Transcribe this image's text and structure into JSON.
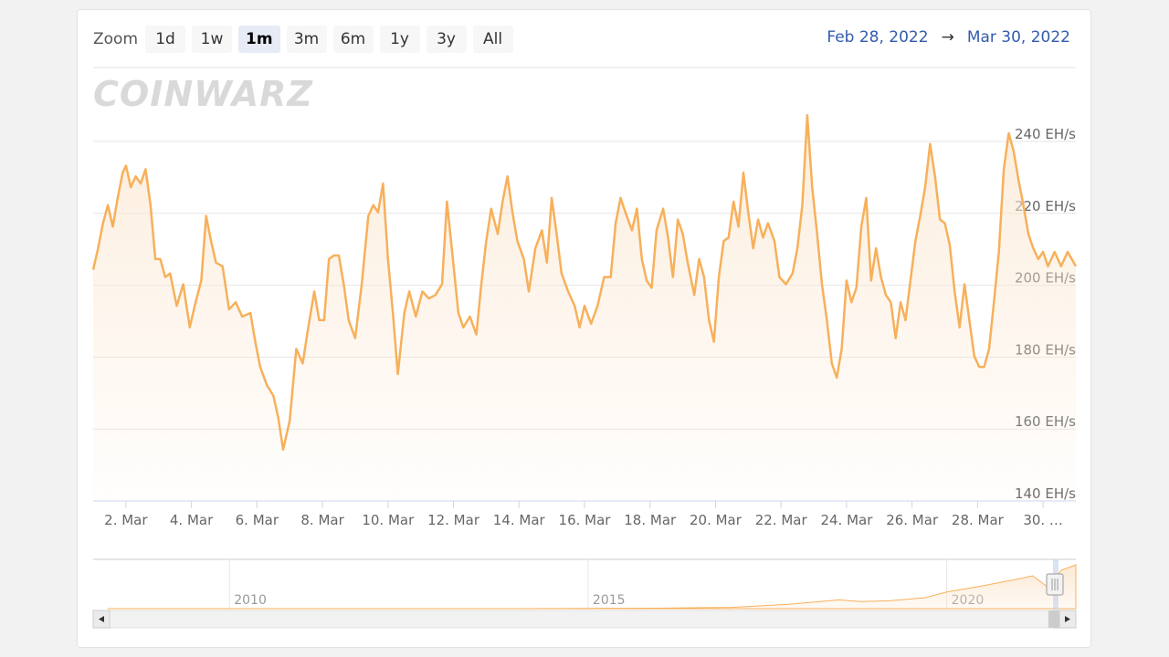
{
  "zoom": {
    "label": "Zoom",
    "buttons": [
      "1d",
      "1w",
      "1m",
      "3m",
      "6m",
      "1y",
      "3y",
      "All"
    ],
    "active": "1m"
  },
  "date_range": {
    "from": "Feb 28, 2022",
    "arrow": "→",
    "to": "Mar 30, 2022"
  },
  "watermark": "COINWARZ",
  "colors": {
    "line": "#f7b05b",
    "fill_top": "#fbe6cf",
    "grid": "#e6e6e6",
    "range_text": "#335cad"
  },
  "chart_data": {
    "type": "area",
    "y_unit": "EH/s",
    "ylim": [
      140,
      250
    ],
    "y_ticks": [
      "140 EH/s",
      "160 EH/s",
      "180 EH/s",
      "200 EH/s",
      "220 EH/s",
      "240 EH/s"
    ],
    "y_tick_values": [
      140,
      160,
      180,
      200,
      220,
      240
    ],
    "x_ticks": [
      "2. Mar",
      "4. Mar",
      "6. Mar",
      "8. Mar",
      "10. Mar",
      "12. Mar",
      "14. Mar",
      "16. Mar",
      "18. Mar",
      "20. Mar",
      "22. Mar",
      "24. Mar",
      "26. Mar",
      "28. Mar",
      "30. …"
    ],
    "x_tick_days": [
      2,
      4,
      6,
      8,
      10,
      12,
      14,
      16,
      18,
      20,
      22,
      24,
      26,
      28,
      30
    ],
    "xlim_days": [
      1.0,
      31.0
    ],
    "series": [
      {
        "points": [
          [
            1.0,
            202
          ],
          [
            1.15,
            208
          ],
          [
            1.3,
            215
          ],
          [
            1.45,
            220
          ],
          [
            1.6,
            214
          ],
          [
            1.75,
            222
          ],
          [
            1.9,
            229
          ],
          [
            2.0,
            231
          ],
          [
            2.15,
            225
          ],
          [
            2.3,
            228
          ],
          [
            2.45,
            226
          ],
          [
            2.6,
            230
          ],
          [
            2.75,
            220
          ],
          [
            2.9,
            205
          ],
          [
            3.05,
            205
          ],
          [
            3.2,
            200
          ],
          [
            3.35,
            201
          ],
          [
            3.55,
            192
          ],
          [
            3.75,
            198
          ],
          [
            3.95,
            186
          ],
          [
            4.1,
            192
          ],
          [
            4.3,
            199
          ],
          [
            4.45,
            217
          ],
          [
            4.6,
            210
          ],
          [
            4.75,
            204
          ],
          [
            4.95,
            203
          ],
          [
            5.15,
            191
          ],
          [
            5.35,
            193
          ],
          [
            5.55,
            189
          ],
          [
            5.8,
            190
          ],
          [
            5.95,
            182
          ],
          [
            6.1,
            175
          ],
          [
            6.3,
            170
          ],
          [
            6.5,
            167
          ],
          [
            6.65,
            161
          ],
          [
            6.8,
            152
          ],
          [
            7.0,
            160
          ],
          [
            7.2,
            180
          ],
          [
            7.4,
            176
          ],
          [
            7.55,
            185
          ],
          [
            7.75,
            196
          ],
          [
            7.9,
            188
          ],
          [
            8.05,
            188
          ],
          [
            8.2,
            205
          ],
          [
            8.35,
            206
          ],
          [
            8.5,
            206
          ],
          [
            8.65,
            198
          ],
          [
            8.8,
            188
          ],
          [
            9.0,
            183
          ],
          [
            9.2,
            198
          ],
          [
            9.4,
            217
          ],
          [
            9.55,
            220
          ],
          [
            9.7,
            218
          ],
          [
            9.85,
            226
          ],
          [
            10.0,
            205
          ],
          [
            10.15,
            190
          ],
          [
            10.3,
            173
          ],
          [
            10.5,
            190
          ],
          [
            10.65,
            196
          ],
          [
            10.85,
            189
          ],
          [
            11.05,
            196
          ],
          [
            11.25,
            194
          ],
          [
            11.45,
            195
          ],
          [
            11.65,
            198
          ],
          [
            11.8,
            221
          ],
          [
            11.95,
            208
          ],
          [
            12.15,
            190
          ],
          [
            12.3,
            186
          ],
          [
            12.5,
            189
          ],
          [
            12.7,
            184
          ],
          [
            12.85,
            198
          ],
          [
            13.0,
            210
          ],
          [
            13.15,
            219
          ],
          [
            13.35,
            212
          ],
          [
            13.5,
            221
          ],
          [
            13.65,
            228
          ],
          [
            13.8,
            218
          ],
          [
            13.95,
            210
          ],
          [
            14.15,
            205
          ],
          [
            14.3,
            196
          ],
          [
            14.5,
            208
          ],
          [
            14.7,
            213
          ],
          [
            14.85,
            204
          ],
          [
            15.0,
            222
          ],
          [
            15.15,
            212
          ],
          [
            15.3,
            201
          ],
          [
            15.5,
            196
          ],
          [
            15.7,
            192
          ],
          [
            15.85,
            186
          ],
          [
            16.0,
            192
          ],
          [
            16.2,
            187
          ],
          [
            16.4,
            192
          ],
          [
            16.6,
            200
          ],
          [
            16.8,
            200
          ],
          [
            16.95,
            215
          ],
          [
            17.1,
            222
          ],
          [
            17.25,
            218
          ],
          [
            17.45,
            213
          ],
          [
            17.6,
            219
          ],
          [
            17.75,
            205
          ],
          [
            17.9,
            199
          ],
          [
            18.05,
            197
          ],
          [
            18.2,
            213
          ],
          [
            18.4,
            219
          ],
          [
            18.55,
            211
          ],
          [
            18.7,
            200
          ],
          [
            18.85,
            216
          ],
          [
            19.0,
            212
          ],
          [
            19.15,
            204
          ],
          [
            19.35,
            195
          ],
          [
            19.5,
            205
          ],
          [
            19.65,
            200
          ],
          [
            19.8,
            188
          ],
          [
            19.95,
            182
          ],
          [
            20.1,
            200
          ],
          [
            20.25,
            210
          ],
          [
            20.4,
            211
          ],
          [
            20.55,
            221
          ],
          [
            20.7,
            214
          ],
          [
            20.85,
            229
          ],
          [
            21.0,
            218
          ],
          [
            21.15,
            208
          ],
          [
            21.3,
            216
          ],
          [
            21.45,
            211
          ],
          [
            21.6,
            215
          ],
          [
            21.8,
            210
          ],
          [
            21.95,
            200
          ],
          [
            22.15,
            198
          ],
          [
            22.35,
            201
          ],
          [
            22.5,
            208
          ],
          [
            22.65,
            220
          ],
          [
            22.8,
            245
          ],
          [
            22.95,
            225
          ],
          [
            23.1,
            212
          ],
          [
            23.25,
            198
          ],
          [
            23.4,
            188
          ],
          [
            23.55,
            176
          ],
          [
            23.7,
            172
          ],
          [
            23.85,
            180
          ],
          [
            24.0,
            199
          ],
          [
            24.15,
            193
          ],
          [
            24.3,
            197
          ],
          [
            24.45,
            214
          ],
          [
            24.6,
            222
          ],
          [
            24.75,
            199
          ],
          [
            24.9,
            208
          ],
          [
            25.05,
            200
          ],
          [
            25.2,
            195
          ],
          [
            25.35,
            193
          ],
          [
            25.5,
            183
          ],
          [
            25.65,
            193
          ],
          [
            25.8,
            188
          ],
          [
            25.95,
            199
          ],
          [
            26.1,
            210
          ],
          [
            26.25,
            217
          ],
          [
            26.4,
            225
          ],
          [
            26.55,
            237
          ],
          [
            26.7,
            228
          ],
          [
            26.85,
            216
          ],
          [
            27.0,
            215
          ],
          [
            27.15,
            209
          ],
          [
            27.3,
            196
          ],
          [
            27.45,
            186
          ],
          [
            27.6,
            198
          ],
          [
            27.75,
            188
          ],
          [
            27.9,
            178
          ],
          [
            28.05,
            175
          ],
          [
            28.2,
            175
          ],
          [
            28.35,
            180
          ],
          [
            28.5,
            193
          ],
          [
            28.65,
            207
          ],
          [
            28.8,
            230
          ],
          [
            28.95,
            240
          ],
          [
            29.1,
            235
          ],
          [
            29.25,
            227
          ],
          [
            29.4,
            220
          ],
          [
            29.55,
            212
          ],
          [
            29.7,
            208
          ],
          [
            29.85,
            205
          ],
          [
            30.0,
            207
          ],
          [
            30.15,
            203
          ],
          [
            30.35,
            207
          ],
          [
            30.55,
            203
          ],
          [
            30.75,
            207
          ],
          [
            31.0,
            203
          ]
        ]
      }
    ]
  },
  "navigator": {
    "year_labels": [
      "2010",
      "2015",
      "2020"
    ],
    "year_positions": [
      2010,
      2015,
      2020
    ],
    "xlim_years": [
      2008.1,
      2021.8
    ],
    "shape": [
      [
        2008.3,
        0.0
      ],
      [
        2011.0,
        0.0
      ],
      [
        2014.0,
        0.0
      ],
      [
        2016.0,
        0.01
      ],
      [
        2017.0,
        0.03
      ],
      [
        2017.8,
        0.1
      ],
      [
        2018.5,
        0.2
      ],
      [
        2018.8,
        0.16
      ],
      [
        2019.2,
        0.18
      ],
      [
        2019.7,
        0.25
      ],
      [
        2020.0,
        0.38
      ],
      [
        2020.5,
        0.52
      ],
      [
        2021.0,
        0.68
      ],
      [
        2021.2,
        0.75
      ],
      [
        2021.4,
        0.5
      ],
      [
        2021.6,
        0.88
      ],
      [
        2021.8,
        1.0
      ]
    ]
  }
}
